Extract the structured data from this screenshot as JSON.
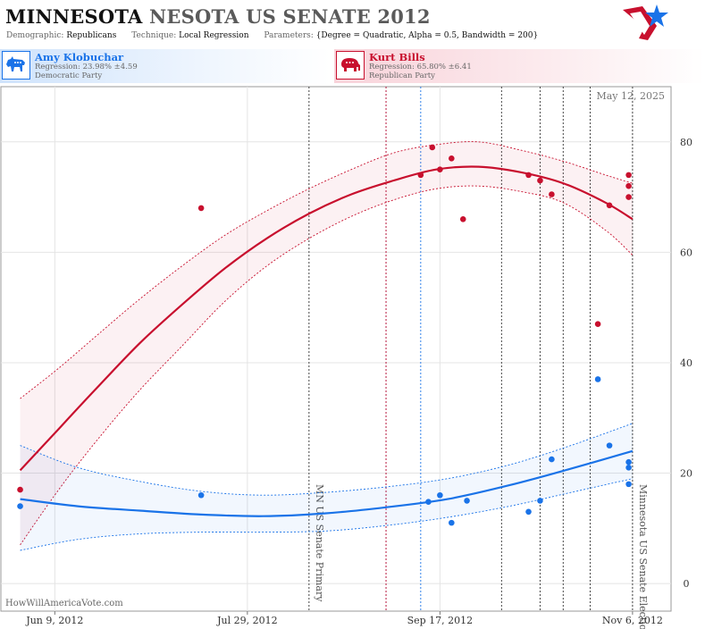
{
  "header": {
    "title_state": "MINNESOTA",
    "title_race": "NESOTA US SENATE 2012",
    "demographic_label": "Demographic:",
    "demographic_value": "Republicans",
    "technique_label": "Technique:",
    "technique_value": "Local Regression",
    "parameters_label": "Parameters:",
    "parameters_value": "{Degree = Quadratic, Alpha = 0.5, Bandwidth = 200}"
  },
  "candidates": {
    "dem": {
      "name": "Amy Klobuchar",
      "regression": "Regression: 23.98% ±4.59",
      "party": "Democratic Party",
      "icon": "donkey-icon",
      "color": "#1a73e8"
    },
    "rep": {
      "name": "Kurt Bills",
      "regression": "Regression: 65.80% ±6.41",
      "party": "Republican Party",
      "icon": "elephant-icon",
      "color": "#c8102e"
    }
  },
  "date_stamp": "May 12, 2025",
  "credit": "HowWillAmericaVote.com",
  "chart_data": {
    "type": "scatter",
    "title": "MINNESOTA NESOTA US SENATE 2012",
    "x_axis": {
      "type": "date",
      "range": [
        "2012-05-26",
        "2012-11-16"
      ],
      "tick_labels": [
        "Jun 9, 2012",
        "Jul 29, 2012",
        "Sep 17, 2012",
        "Nov 6, 2012"
      ],
      "tick_dates": [
        "2012-06-09",
        "2012-07-29",
        "2012-09-17",
        "2012-11-06"
      ]
    },
    "y_axis": {
      "range": [
        -5,
        90
      ],
      "ticks": [
        0,
        20,
        40,
        60,
        80
      ],
      "side": "right"
    },
    "grid": true,
    "events": [
      {
        "label": "MN US Senate Primary",
        "date": "2012-08-14"
      },
      {
        "label": "Minnesota US Senate Election",
        "date": "2012-11-06"
      }
    ],
    "vertical_markers": [
      {
        "date": "2012-08-14",
        "color": "#333333"
      },
      {
        "date": "2012-09-03",
        "color": "#b0002a"
      },
      {
        "date": "2012-09-12",
        "color": "#1a73e8"
      },
      {
        "date": "2012-10-03",
        "color": "#333333"
      },
      {
        "date": "2012-10-13",
        "color": "#333333"
      },
      {
        "date": "2012-10-19",
        "color": "#333333"
      },
      {
        "date": "2012-10-26",
        "color": "#333333"
      },
      {
        "date": "2012-11-06",
        "color": "#333333"
      }
    ],
    "series": [
      {
        "name": "Kurt Bills",
        "color": "#c8102e",
        "points": [
          {
            "x": "2012-05-31",
            "y": 17
          },
          {
            "x": "2012-07-17",
            "y": 68
          },
          {
            "x": "2012-09-12",
            "y": 74
          },
          {
            "x": "2012-09-15",
            "y": 79
          },
          {
            "x": "2012-09-17",
            "y": 75
          },
          {
            "x": "2012-09-20",
            "y": 77
          },
          {
            "x": "2012-09-23",
            "y": 66
          },
          {
            "x": "2012-10-10",
            "y": 74
          },
          {
            "x": "2012-10-13",
            "y": 73
          },
          {
            "x": "2012-10-16",
            "y": 70.5
          },
          {
            "x": "2012-10-28",
            "y": 47
          },
          {
            "x": "2012-10-31",
            "y": 68.5
          },
          {
            "x": "2012-11-05",
            "y": 74
          },
          {
            "x": "2012-11-05",
            "y": 72
          },
          {
            "x": "2012-11-05",
            "y": 70
          }
        ],
        "fit": [
          {
            "x": "2012-05-31",
            "y": 20.5,
            "lo": 7,
            "hi": 33.5
          },
          {
            "x": "2012-06-10",
            "y": 28,
            "lo": 17,
            "hi": 39
          },
          {
            "x": "2012-06-20",
            "y": 35.5,
            "lo": 26,
            "hi": 45
          },
          {
            "x": "2012-07-01",
            "y": 43.5,
            "lo": 35,
            "hi": 51.5
          },
          {
            "x": "2012-07-12",
            "y": 50.5,
            "lo": 43,
            "hi": 57.5
          },
          {
            "x": "2012-07-23",
            "y": 57,
            "lo": 51,
            "hi": 63
          },
          {
            "x": "2012-08-03",
            "y": 62.5,
            "lo": 57.5,
            "hi": 67.5
          },
          {
            "x": "2012-08-14",
            "y": 67,
            "lo": 62.5,
            "hi": 71.5
          },
          {
            "x": "2012-08-25",
            "y": 70.5,
            "lo": 66.5,
            "hi": 75
          },
          {
            "x": "2012-09-05",
            "y": 73,
            "lo": 69.5,
            "hi": 78
          },
          {
            "x": "2012-09-16",
            "y": 75,
            "lo": 71.5,
            "hi": 79.5
          },
          {
            "x": "2012-09-27",
            "y": 75.5,
            "lo": 72,
            "hi": 80
          },
          {
            "x": "2012-10-08",
            "y": 74.5,
            "lo": 71,
            "hi": 78.5
          },
          {
            "x": "2012-10-19",
            "y": 72.5,
            "lo": 69,
            "hi": 76.5
          },
          {
            "x": "2012-10-30",
            "y": 69,
            "lo": 64,
            "hi": 74
          },
          {
            "x": "2012-11-06",
            "y": 66,
            "lo": 59.5,
            "hi": 72.5
          }
        ]
      },
      {
        "name": "Amy Klobuchar",
        "color": "#1a73e8",
        "points": [
          {
            "x": "2012-05-31",
            "y": 14
          },
          {
            "x": "2012-07-17",
            "y": 16
          },
          {
            "x": "2012-09-14",
            "y": 14.8
          },
          {
            "x": "2012-09-17",
            "y": 16
          },
          {
            "x": "2012-09-20",
            "y": 11
          },
          {
            "x": "2012-09-24",
            "y": 15
          },
          {
            "x": "2012-10-10",
            "y": 13
          },
          {
            "x": "2012-10-13",
            "y": 15
          },
          {
            "x": "2012-10-16",
            "y": 22.5
          },
          {
            "x": "2012-10-28",
            "y": 37
          },
          {
            "x": "2012-10-31",
            "y": 25
          },
          {
            "x": "2012-11-05",
            "y": 22
          },
          {
            "x": "2012-11-05",
            "y": 21
          },
          {
            "x": "2012-11-05",
            "y": 18
          }
        ],
        "fit": [
          {
            "x": "2012-05-31",
            "y": 15.3,
            "lo": 6,
            "hi": 25
          },
          {
            "x": "2012-06-15",
            "y": 14,
            "lo": 8,
            "hi": 21
          },
          {
            "x": "2012-07-01",
            "y": 13.2,
            "lo": 9,
            "hi": 18.5
          },
          {
            "x": "2012-07-17",
            "y": 12.5,
            "lo": 9.3,
            "hi": 16.7
          },
          {
            "x": "2012-08-02",
            "y": 12.2,
            "lo": 9.3,
            "hi": 16
          },
          {
            "x": "2012-08-18",
            "y": 12.7,
            "lo": 9.5,
            "hi": 16.5
          },
          {
            "x": "2012-09-03",
            "y": 13.8,
            "lo": 10.5,
            "hi": 17.5
          },
          {
            "x": "2012-09-19",
            "y": 15.3,
            "lo": 12,
            "hi": 19
          },
          {
            "x": "2012-10-05",
            "y": 17.8,
            "lo": 14,
            "hi": 21.5
          },
          {
            "x": "2012-10-21",
            "y": 20.8,
            "lo": 16.5,
            "hi": 25
          },
          {
            "x": "2012-11-06",
            "y": 24,
            "lo": 19,
            "hi": 29
          }
        ]
      }
    ]
  }
}
